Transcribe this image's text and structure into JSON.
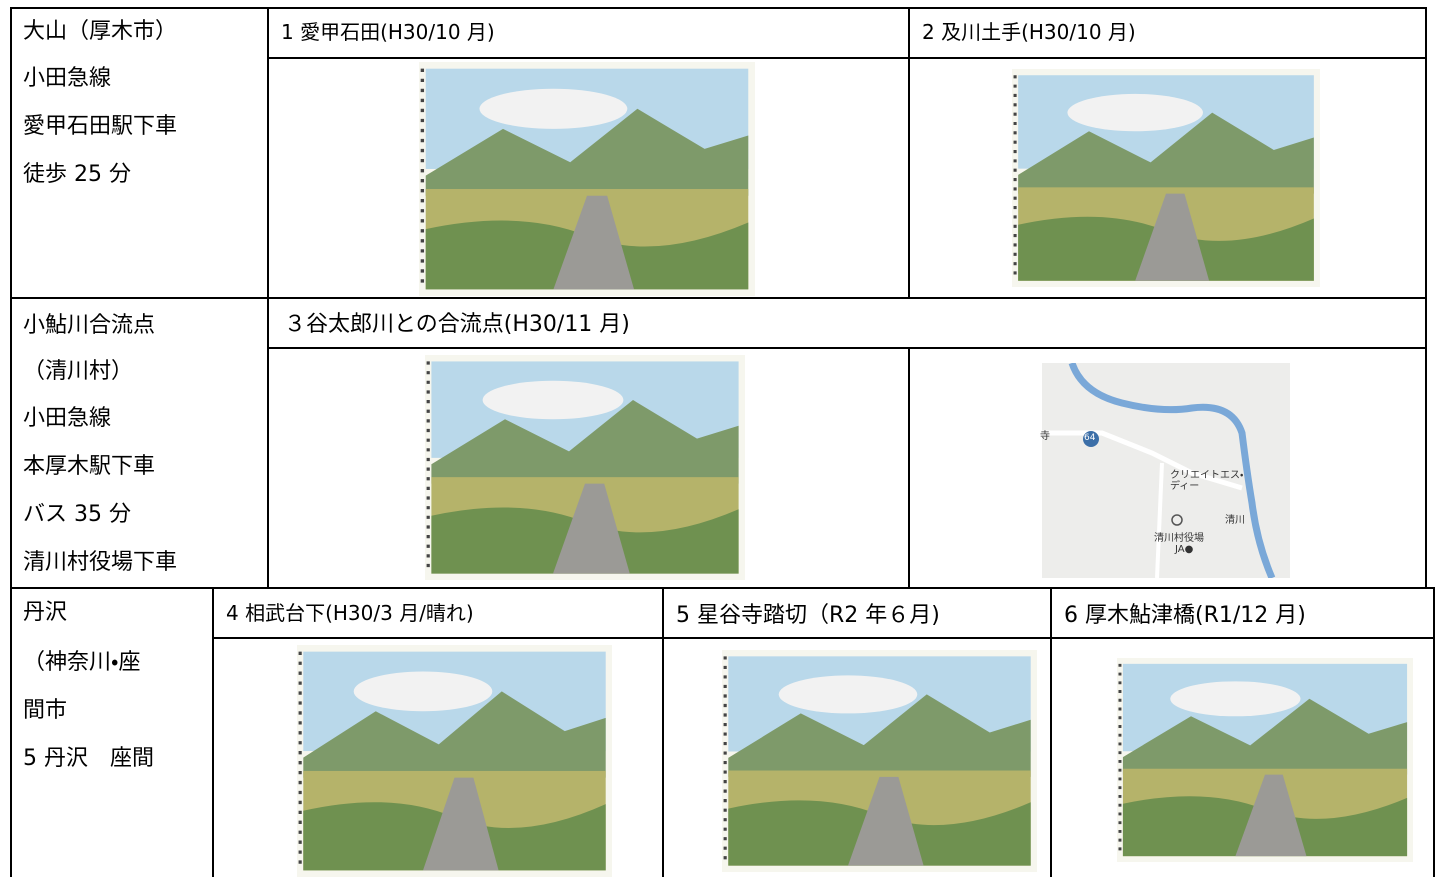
{
  "sections": [
    {
      "place_lines": [
        "大山（厚木市）",
        "小田急線",
        "愛甲石田駅下車",
        "徒歩 25 分"
      ],
      "captions": [
        "1 愛甲石田(H30/10 月)",
        "2 及川土手(H30/10 月)"
      ]
    },
    {
      "place_lines": [
        "小鮎川合流点",
        "（清川村）",
        "小田急線",
        "本厚木駅下車",
        "バス 35 分",
        "清川村役場下車"
      ],
      "captions": [
        "３谷太郎川との合流点(H30/11 月)"
      ],
      "map_labels": [
        "寺",
        "64",
        "クリエイトエス・",
        "ディー",
        "清川",
        "清川村役場",
        "JA●"
      ]
    },
    {
      "place_lines": [
        "丹沢",
        "（神奈川・座",
        "間市",
        "5 丹沢　座間"
      ],
      "captions": [
        "4 相武台下(H30/3 月/晴れ)",
        "5 星谷寺踏切（R2 年６月)",
        "6 厚木鮎津橋(R1/12 月)"
      ]
    }
  ]
}
